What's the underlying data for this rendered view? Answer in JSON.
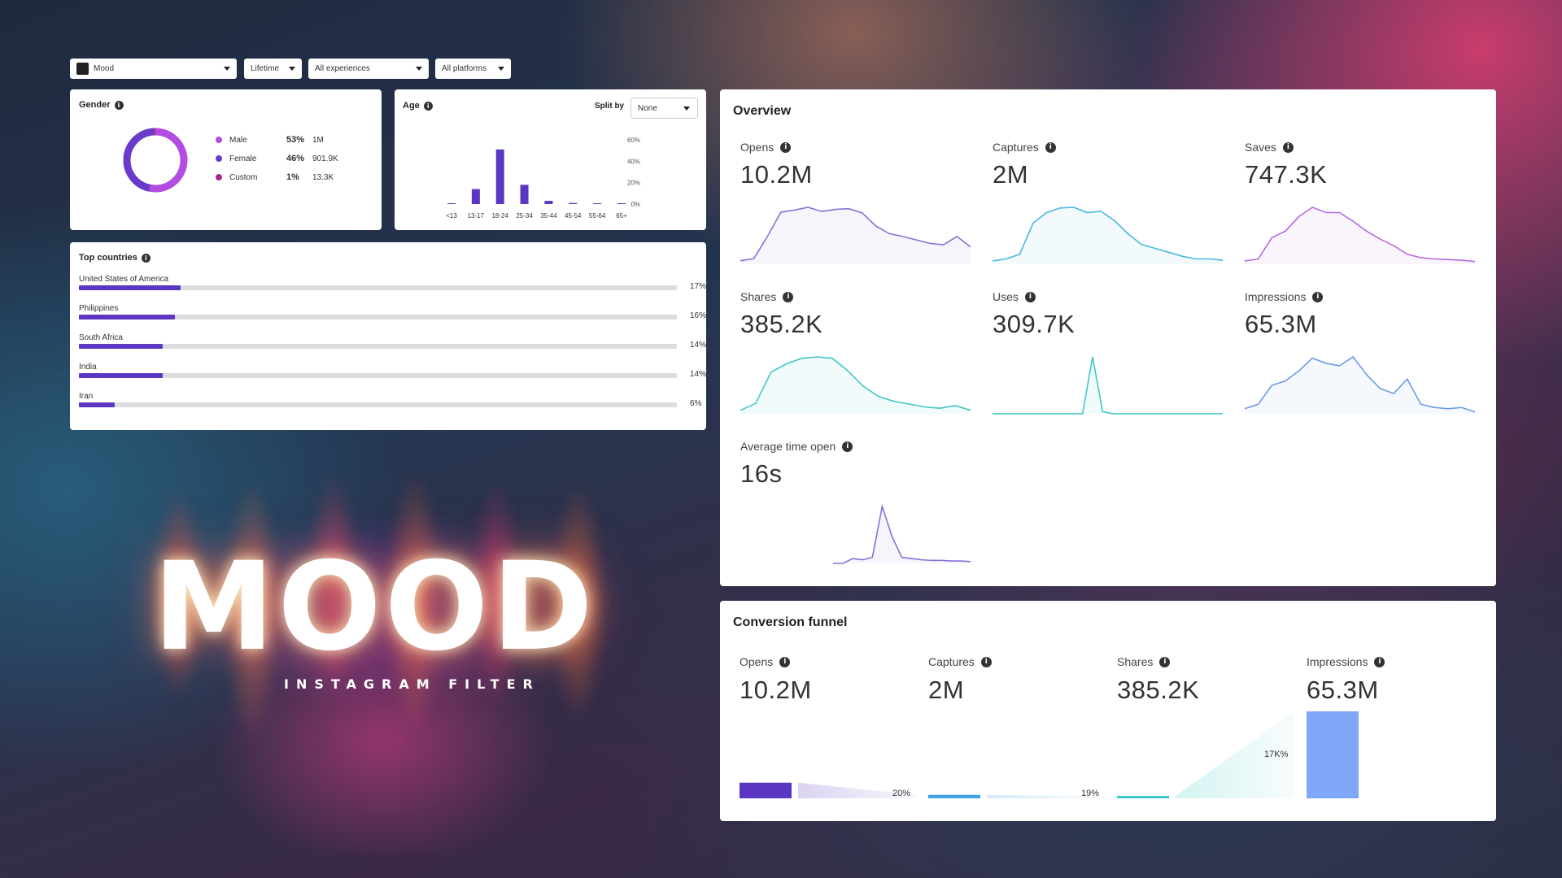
{
  "filters": {
    "filter_name": "Mood",
    "time_range": "Lifetime",
    "experiences": "All experiences",
    "platforms": "All platforms"
  },
  "gender": {
    "title": "Gender",
    "items": [
      {
        "label": "Male",
        "percent": "53%",
        "count": "1M",
        "fraction": 0.53,
        "color": "#b34ce0"
      },
      {
        "label": "Female",
        "percent": "46%",
        "count": "901.9K",
        "fraction": 0.46,
        "color": "#6a3bc9"
      },
      {
        "label": "Custom",
        "percent": "1%",
        "count": "13.3K",
        "fraction": 0.01,
        "color": "#a52b8c"
      }
    ]
  },
  "age": {
    "title": "Age",
    "split_label": "Split by",
    "split_value": "None",
    "chart_data": {
      "type": "bar",
      "categories": [
        "<13",
        "13-17",
        "18-24",
        "25-34",
        "35-44",
        "45-54",
        "55-64",
        "65+"
      ],
      "values": [
        0.5,
        14,
        51,
        18,
        3,
        1,
        0.5,
        0.5
      ],
      "ylim": [
        0,
        60
      ],
      "yticks": [
        "60%",
        "40%",
        "20%",
        "0%"
      ],
      "color": "#5b36c2"
    }
  },
  "countries": {
    "title": "Top countries",
    "items": [
      {
        "name": "United States of America",
        "percent": "17%",
        "fraction": 0.17
      },
      {
        "name": "Philippines",
        "percent": "16%",
        "fraction": 0.16
      },
      {
        "name": "South Africa",
        "percent": "14%",
        "fraction": 0.14
      },
      {
        "name": "India",
        "percent": "14%",
        "fraction": 0.14
      },
      {
        "name": "Iran",
        "percent": "6%",
        "fraction": 0.06
      }
    ]
  },
  "overview": {
    "title": "Overview",
    "metrics": [
      {
        "label": "Opens",
        "value": "10.2M",
        "color": "#8a6fd6",
        "spark": [
          5,
          8,
          40,
          75,
          78,
          82,
          76,
          79,
          80,
          74,
          55,
          44,
          40,
          35,
          30,
          28,
          40,
          25
        ]
      },
      {
        "label": "Captures",
        "value": "2M",
        "color": "#49b8e0",
        "spark": [
          5,
          8,
          15,
          62,
          78,
          85,
          86,
          78,
          80,
          66,
          46,
          30,
          24,
          18,
          12,
          8,
          8,
          6
        ]
      },
      {
        "label": "Saves",
        "value": "747.3K",
        "color": "#b46be0",
        "spark": [
          5,
          8,
          40,
          50,
          72,
          86,
          78,
          78,
          65,
          50,
          38,
          28,
          15,
          10,
          8,
          7,
          6,
          4
        ]
      },
      {
        "label": "Shares",
        "value": "385.2K",
        "color": "#3fc7c7",
        "spark": [
          5,
          15,
          60,
          72,
          80,
          82,
          80,
          62,
          40,
          25,
          18,
          14,
          10,
          8,
          12,
          5
        ]
      },
      {
        "label": "Uses",
        "value": "309.7K",
        "color": "#3fc7c7",
        "spark": [
          0,
          0,
          0,
          0,
          0,
          0,
          0,
          0,
          0,
          0,
          100,
          4,
          0,
          0,
          0,
          0,
          0,
          0,
          0,
          0,
          0,
          0,
          0,
          0
        ]
      },
      {
        "label": "Impressions",
        "value": "65.3M",
        "color": "#6c9be8",
        "spark": [
          8,
          15,
          45,
          52,
          68,
          88,
          80,
          76,
          90,
          62,
          40,
          32,
          55,
          15,
          10,
          8,
          10,
          3
        ]
      },
      {
        "label": "Average time open",
        "value": "16s",
        "color": "#8a6fd6",
        "spark": [
          0,
          0,
          8,
          6,
          10,
          95,
          45,
          10,
          8,
          6,
          5,
          5,
          4,
          4,
          3
        ]
      }
    ]
  },
  "funnel": {
    "title": "Conversion funnel",
    "steps": [
      {
        "label": "Opens",
        "value": "10.2M",
        "color": "#5b36c2",
        "bar_height": 0.18
      },
      {
        "label": "Captures",
        "value": "2M",
        "color": "#3ea3e4",
        "bar_height": 0.04
      },
      {
        "label": "Shares",
        "value": "385.2K",
        "color": "#3fc7c7",
        "bar_height": 0.02
      },
      {
        "label": "Impressions",
        "value": "65.3M",
        "color": "#7fa8f8",
        "bar_height": 1.0
      }
    ],
    "rates": [
      "20%",
      "19%",
      "17K%"
    ]
  },
  "art": {
    "title": "MOOD",
    "subtitle": "INSTAGRAM FILTER"
  }
}
